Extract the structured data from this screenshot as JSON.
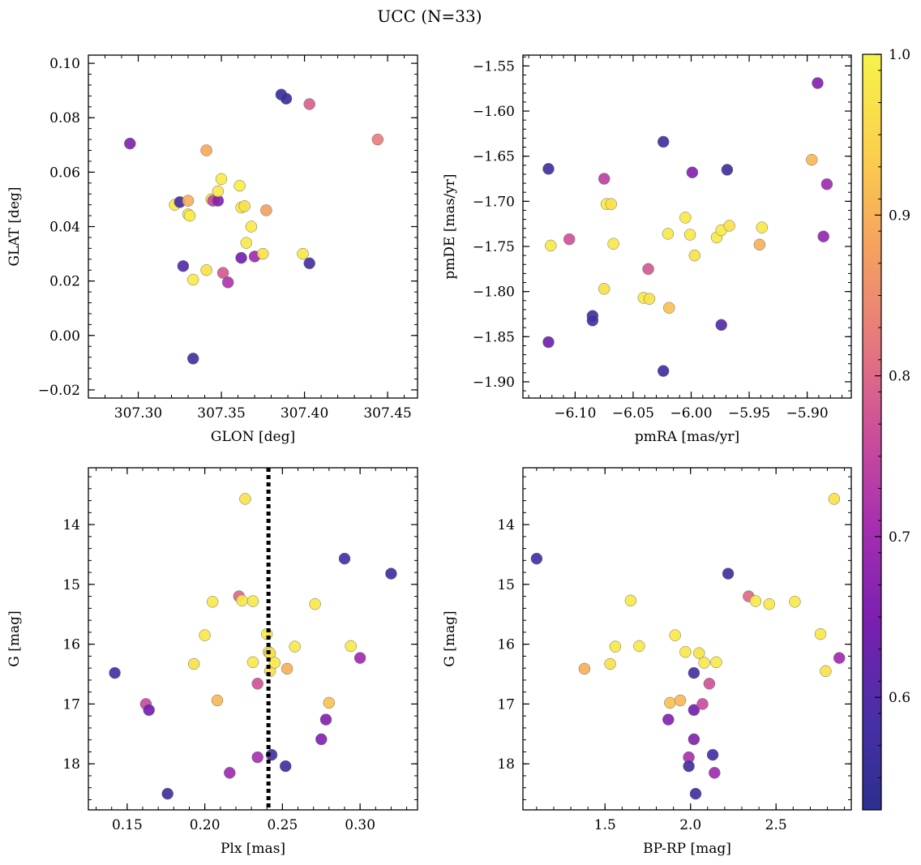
{
  "title": "UCC (N=33)",
  "colormap": {
    "name": "plasma",
    "label": "",
    "range": [
      0.53,
      1.0
    ],
    "ticks": [
      0.6,
      0.7,
      0.8,
      0.9,
      1.0
    ],
    "tick_labels": [
      "0.6",
      "0.7",
      "0.8",
      "0.9",
      "1.0"
    ],
    "stops": [
      "#2c2f8e",
      "#4a2fa6",
      "#7a1fb0",
      "#a52fb0",
      "#cc4f9a",
      "#e67b7c",
      "#f6a35e",
      "#fbd24c",
      "#f7f34a"
    ]
  },
  "chart_data": [
    {
      "type": "scatter",
      "id": "glon-glat",
      "xlabel": "GLON [deg]",
      "ylabel": "GLAT [deg]",
      "xlim": [
        307.27,
        307.468
      ],
      "ylim": [
        -0.023,
        0.103
      ],
      "x_ticks": [
        307.3,
        307.35,
        307.4,
        307.45
      ],
      "x_tick_labels": [
        "307.30",
        "307.35",
        "307.40",
        "307.45"
      ],
      "y_ticks": [
        -0.02,
        0.0,
        0.02,
        0.04,
        0.06,
        0.08,
        0.1
      ],
      "y_tick_labels": [
        "−0.02",
        "0.00",
        "0.02",
        "0.04",
        "0.06",
        "0.08",
        "0.10"
      ],
      "points": [
        {
          "x": 307.295,
          "y": 0.0705,
          "c": 0.66
        },
        {
          "x": 307.322,
          "y": 0.048,
          "c": 0.98
        },
        {
          "x": 307.325,
          "y": 0.049,
          "c": 0.58
        },
        {
          "x": 307.327,
          "y": 0.0255,
          "c": 0.6
        },
        {
          "x": 307.33,
          "y": 0.0445,
          "c": 0.99
        },
        {
          "x": 307.331,
          "y": 0.044,
          "c": 0.99
        },
        {
          "x": 307.33,
          "y": 0.0495,
          "c": 0.9
        },
        {
          "x": 307.333,
          "y": 0.0205,
          "c": 0.98
        },
        {
          "x": 307.333,
          "y": -0.0085,
          "c": 0.58
        },
        {
          "x": 307.341,
          "y": 0.068,
          "c": 0.89
        },
        {
          "x": 307.341,
          "y": 0.024,
          "c": 0.97
        },
        {
          "x": 307.344,
          "y": 0.05,
          "c": 0.97
        },
        {
          "x": 307.345,
          "y": 0.0495,
          "c": 0.75
        },
        {
          "x": 307.348,
          "y": 0.0495,
          "c": 0.66
        },
        {
          "x": 307.348,
          "y": 0.053,
          "c": 0.98
        },
        {
          "x": 307.35,
          "y": 0.0575,
          "c": 0.99
        },
        {
          "x": 307.351,
          "y": 0.023,
          "c": 0.78
        },
        {
          "x": 307.354,
          "y": 0.0195,
          "c": 0.72
        },
        {
          "x": 307.361,
          "y": 0.055,
          "c": 0.99
        },
        {
          "x": 307.362,
          "y": 0.0285,
          "c": 0.64
        },
        {
          "x": 307.362,
          "y": 0.047,
          "c": 0.98
        },
        {
          "x": 307.364,
          "y": 0.0475,
          "c": 0.97
        },
        {
          "x": 307.365,
          "y": 0.034,
          "c": 0.98
        },
        {
          "x": 307.368,
          "y": 0.04,
          "c": 0.98
        },
        {
          "x": 307.37,
          "y": 0.029,
          "c": 0.7
        },
        {
          "x": 307.375,
          "y": 0.03,
          "c": 0.97
        },
        {
          "x": 307.377,
          "y": 0.046,
          "c": 0.88
        },
        {
          "x": 307.386,
          "y": 0.0885,
          "c": 0.56
        },
        {
          "x": 307.389,
          "y": 0.087,
          "c": 0.56
        },
        {
          "x": 307.399,
          "y": 0.03,
          "c": 0.98
        },
        {
          "x": 307.403,
          "y": 0.0265,
          "c": 0.58
        },
        {
          "x": 307.403,
          "y": 0.085,
          "c": 0.79
        },
        {
          "x": 307.444,
          "y": 0.072,
          "c": 0.83
        }
      ]
    },
    {
      "type": "scatter",
      "id": "pmra-pmde",
      "xlabel": "pmRA [mas/yr]",
      "ylabel": "pmDE [mas/yr]",
      "xlim": [
        -6.145,
        -5.862
      ],
      "ylim": [
        -1.918,
        -1.538
      ],
      "x_ticks": [
        -6.1,
        -6.05,
        -6.0,
        -5.95,
        -5.9
      ],
      "x_tick_labels": [
        "−6.10",
        "−6.05",
        "−6.00",
        "−5.95",
        "−5.90"
      ],
      "y_ticks": [
        -1.9,
        -1.85,
        -1.8,
        -1.75,
        -1.7,
        -1.65,
        -1.6,
        -1.55
      ],
      "y_tick_labels": [
        "−1.90",
        "−1.85",
        "−1.80",
        "−1.75",
        "−1.70",
        "−1.65",
        "−1.60",
        "−1.55"
      ],
      "points": [
        {
          "x": -6.123,
          "y": -1.664,
          "c": 0.57
        },
        {
          "x": -6.121,
          "y": -1.749,
          "c": 0.98
        },
        {
          "x": -6.123,
          "y": -1.856,
          "c": 0.63
        },
        {
          "x": -6.105,
          "y": -1.742,
          "c": 0.77
        },
        {
          "x": -6.085,
          "y": -1.827,
          "c": 0.57
        },
        {
          "x": -6.085,
          "y": -1.832,
          "c": 0.58
        },
        {
          "x": -6.075,
          "y": -1.675,
          "c": 0.74
        },
        {
          "x": -6.073,
          "y": -1.703,
          "c": 0.98
        },
        {
          "x": -6.069,
          "y": -1.703,
          "c": 0.97
        },
        {
          "x": -6.067,
          "y": -1.747,
          "c": 0.98
        },
        {
          "x": -6.075,
          "y": -1.797,
          "c": 0.97
        },
        {
          "x": -6.041,
          "y": -1.807,
          "c": 0.98
        },
        {
          "x": -6.036,
          "y": -1.808,
          "c": 0.97
        },
        {
          "x": -6.037,
          "y": -1.775,
          "c": 0.78
        },
        {
          "x": -6.024,
          "y": -1.634,
          "c": 0.57
        },
        {
          "x": -6.024,
          "y": -1.888,
          "c": 0.57
        },
        {
          "x": -6.02,
          "y": -1.736,
          "c": 0.98
        },
        {
          "x": -6.019,
          "y": -1.818,
          "c": 0.92
        },
        {
          "x": -6.005,
          "y": -1.718,
          "c": 0.98
        },
        {
          "x": -6.001,
          "y": -1.737,
          "c": 0.98
        },
        {
          "x": -5.999,
          "y": -1.668,
          "c": 0.66
        },
        {
          "x": -5.997,
          "y": -1.76,
          "c": 0.97
        },
        {
          "x": -5.978,
          "y": -1.74,
          "c": 0.98
        },
        {
          "x": -5.974,
          "y": -1.732,
          "c": 0.98
        },
        {
          "x": -5.974,
          "y": -1.837,
          "c": 0.6
        },
        {
          "x": -5.969,
          "y": -1.665,
          "c": 0.57
        },
        {
          "x": -5.967,
          "y": -1.727,
          "c": 0.97
        },
        {
          "x": -5.941,
          "y": -1.748,
          "c": 0.9
        },
        {
          "x": -5.939,
          "y": -1.729,
          "c": 0.98
        },
        {
          "x": -5.896,
          "y": -1.654,
          "c": 0.91
        },
        {
          "x": -5.891,
          "y": -1.569,
          "c": 0.66
        },
        {
          "x": -5.886,
          "y": -1.739,
          "c": 0.68
        },
        {
          "x": -5.883,
          "y": -1.681,
          "c": 0.7
        }
      ]
    },
    {
      "type": "scatter",
      "id": "plx-g",
      "xlabel": "Plx [mas]",
      "ylabel": "G [mag]",
      "xlim": [
        0.125,
        0.337
      ],
      "ylim": [
        18.77,
        13.05
      ],
      "y_inverted": true,
      "vline": {
        "x": 0.241,
        "style": "dotted"
      },
      "x_ticks": [
        0.15,
        0.2,
        0.25,
        0.3
      ],
      "x_tick_labels": [
        "0.15",
        "0.20",
        "0.25",
        "0.30"
      ],
      "y_ticks": [
        14,
        15,
        16,
        17,
        18
      ],
      "y_tick_labels": [
        "14",
        "15",
        "16",
        "17",
        "18"
      ],
      "points": [
        {
          "x": 0.142,
          "y": 16.48,
          "c": 0.58
        },
        {
          "x": 0.162,
          "y": 17.0,
          "c": 0.76
        },
        {
          "x": 0.164,
          "y": 17.1,
          "c": 0.64
        },
        {
          "x": 0.176,
          "y": 18.5,
          "c": 0.57
        },
        {
          "x": 0.193,
          "y": 16.33,
          "c": 0.97
        },
        {
          "x": 0.2,
          "y": 15.85,
          "c": 0.98
        },
        {
          "x": 0.205,
          "y": 15.29,
          "c": 0.98
        },
        {
          "x": 0.208,
          "y": 16.94,
          "c": 0.91
        },
        {
          "x": 0.216,
          "y": 18.15,
          "c": 0.7
        },
        {
          "x": 0.222,
          "y": 15.2,
          "c": 0.8
        },
        {
          "x": 0.224,
          "y": 15.27,
          "c": 0.98
        },
        {
          "x": 0.226,
          "y": 13.57,
          "c": 0.97
        },
        {
          "x": 0.231,
          "y": 15.28,
          "c": 0.98
        },
        {
          "x": 0.231,
          "y": 16.3,
          "c": 0.98
        },
        {
          "x": 0.234,
          "y": 16.66,
          "c": 0.77
        },
        {
          "x": 0.234,
          "y": 17.89,
          "c": 0.71
        },
        {
          "x": 0.24,
          "y": 15.83,
          "c": 0.98
        },
        {
          "x": 0.241,
          "y": 16.13,
          "c": 0.98
        },
        {
          "x": 0.242,
          "y": 16.15,
          "c": 0.97
        },
        {
          "x": 0.242,
          "y": 16.45,
          "c": 0.97
        },
        {
          "x": 0.243,
          "y": 17.85,
          "c": 0.58
        },
        {
          "x": 0.245,
          "y": 16.31,
          "c": 0.98
        },
        {
          "x": 0.252,
          "y": 18.04,
          "c": 0.57
        },
        {
          "x": 0.253,
          "y": 16.41,
          "c": 0.9
        },
        {
          "x": 0.258,
          "y": 16.04,
          "c": 0.98
        },
        {
          "x": 0.271,
          "y": 15.33,
          "c": 0.98
        },
        {
          "x": 0.275,
          "y": 17.59,
          "c": 0.66
        },
        {
          "x": 0.278,
          "y": 17.26,
          "c": 0.66
        },
        {
          "x": 0.28,
          "y": 16.98,
          "c": 0.92
        },
        {
          "x": 0.29,
          "y": 14.57,
          "c": 0.58
        },
        {
          "x": 0.294,
          "y": 16.03,
          "c": 0.98
        },
        {
          "x": 0.3,
          "y": 16.23,
          "c": 0.7
        },
        {
          "x": 0.32,
          "y": 14.82,
          "c": 0.57
        }
      ]
    },
    {
      "type": "scatter",
      "id": "bprp-g",
      "xlabel": "BP-RP [mag]",
      "ylabel": "G [mag]",
      "xlim": [
        1.02,
        2.94
      ],
      "ylim": [
        18.77,
        13.05
      ],
      "y_inverted": true,
      "x_ticks": [
        1.5,
        2.0,
        2.5
      ],
      "x_tick_labels": [
        "1.5",
        "2.0",
        "2.5"
      ],
      "y_ticks": [
        14,
        15,
        16,
        17,
        18
      ],
      "y_tick_labels": [
        "14",
        "15",
        "16",
        "17",
        "18"
      ],
      "points": [
        {
          "x": 1.1,
          "y": 14.57,
          "c": 0.58
        },
        {
          "x": 1.38,
          "y": 16.41,
          "c": 0.9
        },
        {
          "x": 1.53,
          "y": 16.33,
          "c": 0.97
        },
        {
          "x": 1.56,
          "y": 16.04,
          "c": 0.98
        },
        {
          "x": 1.65,
          "y": 15.27,
          "c": 0.98
        },
        {
          "x": 1.7,
          "y": 16.03,
          "c": 0.98
        },
        {
          "x": 1.87,
          "y": 17.26,
          "c": 0.66
        },
        {
          "x": 1.88,
          "y": 16.98,
          "c": 0.92
        },
        {
          "x": 1.91,
          "y": 15.85,
          "c": 0.98
        },
        {
          "x": 1.94,
          "y": 16.94,
          "c": 0.91
        },
        {
          "x": 1.97,
          "y": 16.13,
          "c": 0.98
        },
        {
          "x": 1.99,
          "y": 17.89,
          "c": 0.71
        },
        {
          "x": 1.99,
          "y": 18.04,
          "c": 0.57
        },
        {
          "x": 2.02,
          "y": 16.48,
          "c": 0.58
        },
        {
          "x": 2.02,
          "y": 17.1,
          "c": 0.64
        },
        {
          "x": 2.02,
          "y": 17.59,
          "c": 0.66
        },
        {
          "x": 2.03,
          "y": 18.5,
          "c": 0.57
        },
        {
          "x": 2.05,
          "y": 16.15,
          "c": 0.97
        },
        {
          "x": 2.07,
          "y": 17.0,
          "c": 0.76
        },
        {
          "x": 2.08,
          "y": 16.31,
          "c": 0.98
        },
        {
          "x": 2.11,
          "y": 16.66,
          "c": 0.77
        },
        {
          "x": 2.13,
          "y": 17.85,
          "c": 0.58
        },
        {
          "x": 2.14,
          "y": 18.15,
          "c": 0.7
        },
        {
          "x": 2.15,
          "y": 16.3,
          "c": 0.98
        },
        {
          "x": 2.22,
          "y": 14.82,
          "c": 0.57
        },
        {
          "x": 2.34,
          "y": 15.2,
          "c": 0.8
        },
        {
          "x": 2.38,
          "y": 15.28,
          "c": 0.98
        },
        {
          "x": 2.46,
          "y": 15.33,
          "c": 0.98
        },
        {
          "x": 2.61,
          "y": 15.29,
          "c": 0.98
        },
        {
          "x": 2.76,
          "y": 15.83,
          "c": 0.98
        },
        {
          "x": 2.79,
          "y": 16.45,
          "c": 0.97
        },
        {
          "x": 2.84,
          "y": 13.57,
          "c": 0.97
        },
        {
          "x": 2.87,
          "y": 16.23,
          "c": 0.7
        }
      ]
    }
  ]
}
